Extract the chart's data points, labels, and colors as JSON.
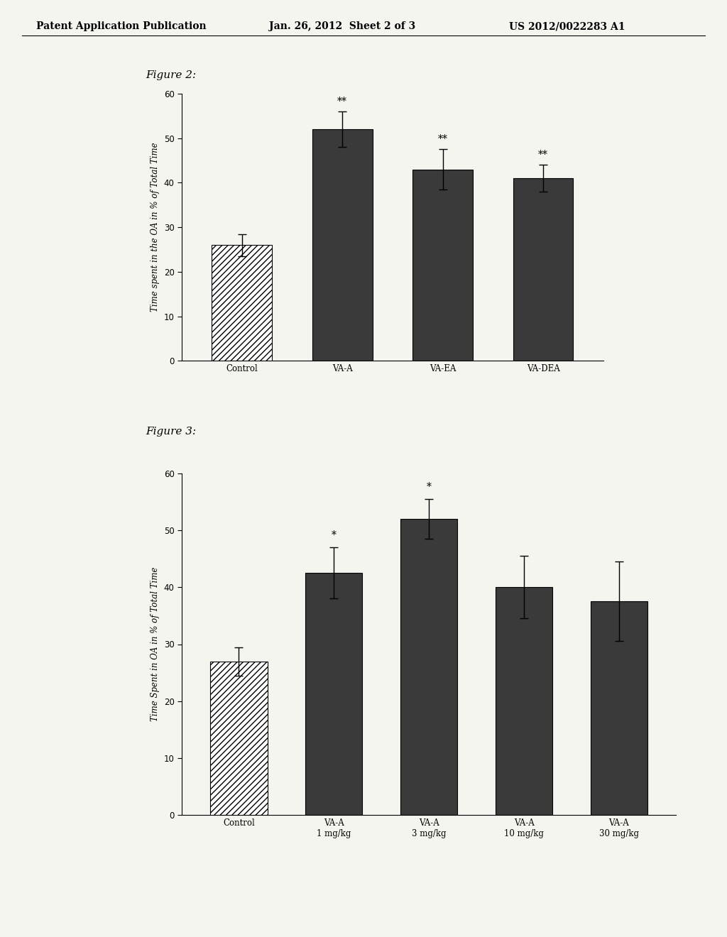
{
  "header_left": "Patent Application Publication",
  "header_mid": "Jan. 26, 2012  Sheet 2 of 3",
  "header_right": "US 2012/0022283 A1",
  "fig2_title": "Figure 2:",
  "fig2_categories": [
    "Control",
    "VA-A",
    "VA-EA",
    "VA-DEA"
  ],
  "fig2_values": [
    26.0,
    52.0,
    43.0,
    41.0
  ],
  "fig2_errors": [
    2.5,
    4.0,
    4.5,
    3.0
  ],
  "fig2_significance": [
    "",
    "**",
    "**",
    "**"
  ],
  "fig2_ylabel": "Time spent in the OA in % of Total Time",
  "fig2_ylim": [
    0,
    60
  ],
  "fig2_yticks": [
    0,
    10,
    20,
    30,
    40,
    50,
    60
  ],
  "fig3_title": "Figure 3:",
  "fig3_categories": [
    "Control",
    "VA-A\n1 mg/kg",
    "VA-A\n3 mg/kg",
    "VA-A\n10 mg/kg",
    "VA-A\n30 mg/kg"
  ],
  "fig3_values": [
    27.0,
    42.5,
    52.0,
    40.0,
    37.5
  ],
  "fig3_errors": [
    2.5,
    4.5,
    3.5,
    5.5,
    7.0
  ],
  "fig3_significance": [
    "",
    "*",
    "*",
    "",
    ""
  ],
  "fig3_ylabel": "Time Spent in OA in % of Total Time",
  "fig3_ylim": [
    0,
    60
  ],
  "fig3_yticks": [
    0,
    10,
    20,
    30,
    40,
    50,
    60
  ],
  "bar_color_dark": "#3a3a3a",
  "bar_color_control": "#ffffff",
  "hatch_control": "////",
  "background_color": "#f5f5f0",
  "font_size_header": 10,
  "font_size_label": 8.5,
  "font_size_tick": 8.5,
  "font_size_sig": 10,
  "font_size_title": 11
}
